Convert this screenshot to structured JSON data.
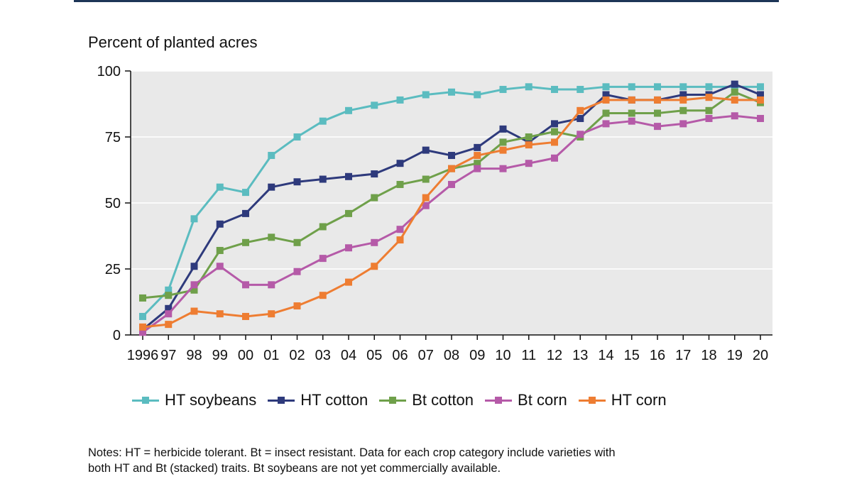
{
  "chart_data": {
    "type": "line",
    "ylabel": "Percent of planted acres",
    "ylim": [
      0,
      100
    ],
    "yticks": [
      0,
      25,
      50,
      75,
      100
    ],
    "grid": true,
    "categories": [
      "1996",
      "97",
      "98",
      "99",
      "00",
      "01",
      "02",
      "03",
      "04",
      "05",
      "06",
      "07",
      "08",
      "09",
      "10",
      "11",
      "12",
      "13",
      "14",
      "15",
      "16",
      "17",
      "18",
      "19",
      "20"
    ],
    "series": [
      {
        "name": "HT soybeans",
        "color": "#5bbcc0",
        "values": [
          7,
          17,
          44,
          56,
          54,
          68,
          75,
          81,
          85,
          87,
          89,
          91,
          92,
          91,
          93,
          94,
          93,
          93,
          94,
          94,
          94,
          94,
          94,
          94,
          94
        ]
      },
      {
        "name": "HT cotton",
        "color": "#2e3a7c",
        "values": [
          2,
          10,
          26,
          42,
          46,
          56,
          58,
          59,
          60,
          61,
          65,
          70,
          68,
          71,
          78,
          73,
          80,
          82,
          91,
          89,
          89,
          91,
          91,
          95,
          91
        ]
      },
      {
        "name": "Bt cotton",
        "color": "#6fa04a",
        "values": [
          14,
          15,
          17,
          32,
          35,
          37,
          35,
          41,
          46,
          52,
          57,
          59,
          63,
          65,
          73,
          75,
          77,
          75,
          84,
          84,
          84,
          85,
          85,
          92,
          88
        ]
      },
      {
        "name": "Bt corn",
        "color": "#b55aa8",
        "values": [
          1,
          8,
          19,
          26,
          19,
          19,
          24,
          29,
          33,
          35,
          40,
          49,
          57,
          63,
          63,
          65,
          67,
          76,
          80,
          81,
          79,
          80,
          82,
          83,
          82
        ]
      },
      {
        "name": "HT corn",
        "color": "#ee7d32",
        "values": [
          3,
          4,
          9,
          8,
          7,
          8,
          11,
          15,
          20,
          26,
          36,
          52,
          63,
          68,
          70,
          72,
          73,
          85,
          89,
          89,
          89,
          89,
          90,
          89,
          89
        ]
      }
    ]
  },
  "notes": {
    "line1": "Notes: HT = herbicide tolerant. Bt = insect resistant. Data for each crop category include varieties with",
    "line2": "both HT and Bt (stacked) traits. Bt soybeans are not yet commercially available."
  }
}
